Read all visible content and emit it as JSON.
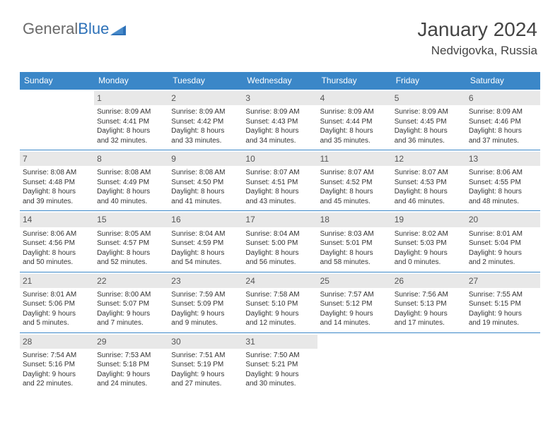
{
  "logo": {
    "part1": "General",
    "part2": "Blue"
  },
  "title": {
    "month": "January 2024",
    "location": "Nedvigovka, Russia"
  },
  "colors": {
    "header_bg": "#3b87c8",
    "header_text": "#ffffff",
    "daynum_bg": "#e8e8e8",
    "border": "#3b87c8",
    "logo_gray": "#6a6a6a",
    "logo_blue": "#2d71b8"
  },
  "dayHeaders": [
    "Sunday",
    "Monday",
    "Tuesday",
    "Wednesday",
    "Thursday",
    "Friday",
    "Saturday"
  ],
  "weeks": [
    [
      {
        "num": "",
        "lines": []
      },
      {
        "num": "1",
        "lines": [
          "Sunrise: 8:09 AM",
          "Sunset: 4:41 PM",
          "Daylight: 8 hours",
          "and 32 minutes."
        ]
      },
      {
        "num": "2",
        "lines": [
          "Sunrise: 8:09 AM",
          "Sunset: 4:42 PM",
          "Daylight: 8 hours",
          "and 33 minutes."
        ]
      },
      {
        "num": "3",
        "lines": [
          "Sunrise: 8:09 AM",
          "Sunset: 4:43 PM",
          "Daylight: 8 hours",
          "and 34 minutes."
        ]
      },
      {
        "num": "4",
        "lines": [
          "Sunrise: 8:09 AM",
          "Sunset: 4:44 PM",
          "Daylight: 8 hours",
          "and 35 minutes."
        ]
      },
      {
        "num": "5",
        "lines": [
          "Sunrise: 8:09 AM",
          "Sunset: 4:45 PM",
          "Daylight: 8 hours",
          "and 36 minutes."
        ]
      },
      {
        "num": "6",
        "lines": [
          "Sunrise: 8:09 AM",
          "Sunset: 4:46 PM",
          "Daylight: 8 hours",
          "and 37 minutes."
        ]
      }
    ],
    [
      {
        "num": "7",
        "lines": [
          "Sunrise: 8:08 AM",
          "Sunset: 4:48 PM",
          "Daylight: 8 hours",
          "and 39 minutes."
        ]
      },
      {
        "num": "8",
        "lines": [
          "Sunrise: 8:08 AM",
          "Sunset: 4:49 PM",
          "Daylight: 8 hours",
          "and 40 minutes."
        ]
      },
      {
        "num": "9",
        "lines": [
          "Sunrise: 8:08 AM",
          "Sunset: 4:50 PM",
          "Daylight: 8 hours",
          "and 41 minutes."
        ]
      },
      {
        "num": "10",
        "lines": [
          "Sunrise: 8:07 AM",
          "Sunset: 4:51 PM",
          "Daylight: 8 hours",
          "and 43 minutes."
        ]
      },
      {
        "num": "11",
        "lines": [
          "Sunrise: 8:07 AM",
          "Sunset: 4:52 PM",
          "Daylight: 8 hours",
          "and 45 minutes."
        ]
      },
      {
        "num": "12",
        "lines": [
          "Sunrise: 8:07 AM",
          "Sunset: 4:53 PM",
          "Daylight: 8 hours",
          "and 46 minutes."
        ]
      },
      {
        "num": "13",
        "lines": [
          "Sunrise: 8:06 AM",
          "Sunset: 4:55 PM",
          "Daylight: 8 hours",
          "and 48 minutes."
        ]
      }
    ],
    [
      {
        "num": "14",
        "lines": [
          "Sunrise: 8:06 AM",
          "Sunset: 4:56 PM",
          "Daylight: 8 hours",
          "and 50 minutes."
        ]
      },
      {
        "num": "15",
        "lines": [
          "Sunrise: 8:05 AM",
          "Sunset: 4:57 PM",
          "Daylight: 8 hours",
          "and 52 minutes."
        ]
      },
      {
        "num": "16",
        "lines": [
          "Sunrise: 8:04 AM",
          "Sunset: 4:59 PM",
          "Daylight: 8 hours",
          "and 54 minutes."
        ]
      },
      {
        "num": "17",
        "lines": [
          "Sunrise: 8:04 AM",
          "Sunset: 5:00 PM",
          "Daylight: 8 hours",
          "and 56 minutes."
        ]
      },
      {
        "num": "18",
        "lines": [
          "Sunrise: 8:03 AM",
          "Sunset: 5:01 PM",
          "Daylight: 8 hours",
          "and 58 minutes."
        ]
      },
      {
        "num": "19",
        "lines": [
          "Sunrise: 8:02 AM",
          "Sunset: 5:03 PM",
          "Daylight: 9 hours",
          "and 0 minutes."
        ]
      },
      {
        "num": "20",
        "lines": [
          "Sunrise: 8:01 AM",
          "Sunset: 5:04 PM",
          "Daylight: 9 hours",
          "and 2 minutes."
        ]
      }
    ],
    [
      {
        "num": "21",
        "lines": [
          "Sunrise: 8:01 AM",
          "Sunset: 5:06 PM",
          "Daylight: 9 hours",
          "and 5 minutes."
        ]
      },
      {
        "num": "22",
        "lines": [
          "Sunrise: 8:00 AM",
          "Sunset: 5:07 PM",
          "Daylight: 9 hours",
          "and 7 minutes."
        ]
      },
      {
        "num": "23",
        "lines": [
          "Sunrise: 7:59 AM",
          "Sunset: 5:09 PM",
          "Daylight: 9 hours",
          "and 9 minutes."
        ]
      },
      {
        "num": "24",
        "lines": [
          "Sunrise: 7:58 AM",
          "Sunset: 5:10 PM",
          "Daylight: 9 hours",
          "and 12 minutes."
        ]
      },
      {
        "num": "25",
        "lines": [
          "Sunrise: 7:57 AM",
          "Sunset: 5:12 PM",
          "Daylight: 9 hours",
          "and 14 minutes."
        ]
      },
      {
        "num": "26",
        "lines": [
          "Sunrise: 7:56 AM",
          "Sunset: 5:13 PM",
          "Daylight: 9 hours",
          "and 17 minutes."
        ]
      },
      {
        "num": "27",
        "lines": [
          "Sunrise: 7:55 AM",
          "Sunset: 5:15 PM",
          "Daylight: 9 hours",
          "and 19 minutes."
        ]
      }
    ],
    [
      {
        "num": "28",
        "lines": [
          "Sunrise: 7:54 AM",
          "Sunset: 5:16 PM",
          "Daylight: 9 hours",
          "and 22 minutes."
        ]
      },
      {
        "num": "29",
        "lines": [
          "Sunrise: 7:53 AM",
          "Sunset: 5:18 PM",
          "Daylight: 9 hours",
          "and 24 minutes."
        ]
      },
      {
        "num": "30",
        "lines": [
          "Sunrise: 7:51 AM",
          "Sunset: 5:19 PM",
          "Daylight: 9 hours",
          "and 27 minutes."
        ]
      },
      {
        "num": "31",
        "lines": [
          "Sunrise: 7:50 AM",
          "Sunset: 5:21 PM",
          "Daylight: 9 hours",
          "and 30 minutes."
        ]
      },
      {
        "num": "",
        "lines": []
      },
      {
        "num": "",
        "lines": []
      },
      {
        "num": "",
        "lines": []
      }
    ]
  ]
}
